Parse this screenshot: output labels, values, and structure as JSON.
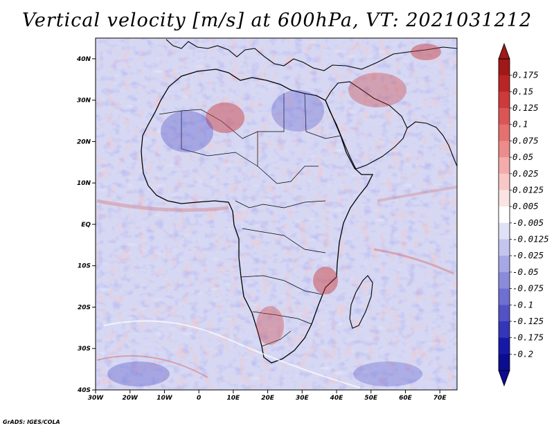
{
  "title": "Vertical velocity [m/s] at 600hPa, VT: 2021031212",
  "credit": "GrADS: IGES/COLA",
  "map": {
    "lon_range": [
      -30,
      75
    ],
    "lat_range": [
      -40,
      45
    ],
    "lat_ticks": [
      "40N",
      "30N",
      "20N",
      "10N",
      "EQ",
      "10S",
      "20S",
      "30S",
      "40S"
    ],
    "lat_values": [
      40,
      30,
      20,
      10,
      0,
      -10,
      -20,
      -30,
      -40
    ],
    "lon_ticks": [
      "30W",
      "20W",
      "10W",
      "0",
      "10E",
      "20E",
      "30E",
      "40E",
      "50E",
      "60E",
      "70E"
    ],
    "lon_values": [
      -30,
      -20,
      -10,
      0,
      10,
      20,
      30,
      40,
      50,
      60,
      70
    ]
  },
  "colorbar": {
    "labels": [
      "0.175",
      "0.15",
      "0.125",
      "0.1",
      "0.075",
      "0.05",
      "0.025",
      "0.0125",
      "0.005",
      "-0.005",
      "-0.0125",
      "-0.025",
      "-0.05",
      "-0.075",
      "-0.1",
      "-0.125",
      "-0.175",
      "-0.2"
    ],
    "colors": [
      "#a01818",
      "#b92525",
      "#cc3a3a",
      "#db5555",
      "#e47070",
      "#ec8c8c",
      "#f3abab",
      "#f8c8c8",
      "#fbe3e3",
      "#ffffff",
      "#e0e0f6",
      "#c4c4ef",
      "#a7a7e6",
      "#8b8bdc",
      "#6f6fd2",
      "#5252c6",
      "#3535b8",
      "#1818a6",
      "#0c0c90"
    ]
  },
  "colors": {
    "ocean_base": "#d6d8f3",
    "land_base": "#e9e2ea",
    "coast": "#000000"
  }
}
